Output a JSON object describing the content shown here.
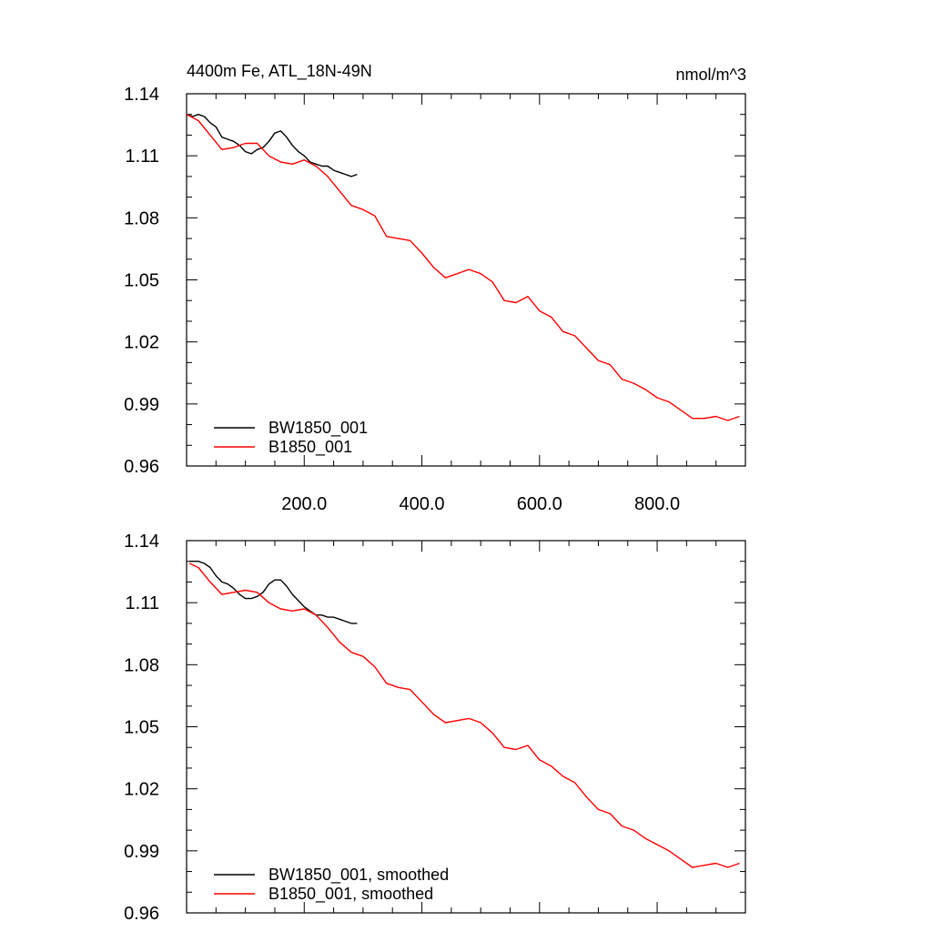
{
  "chart_data": [
    {
      "type": "line",
      "title": "4400m Fe, ATL_18N-49N",
      "units": "nmol/m^3",
      "xlabel": "",
      "ylabel": "",
      "xlim": [
        0,
        950
      ],
      "ylim": [
        0.96,
        1.14
      ],
      "xticks": [
        200,
        400,
        600,
        800
      ],
      "xtick_labels": [
        "200.0",
        "400.0",
        "600.0",
        "800.0"
      ],
      "yticks": [
        0.96,
        0.99,
        1.02,
        1.05,
        1.08,
        1.11,
        1.14
      ],
      "ytick_labels": [
        "0.96",
        "0.99",
        "1.02",
        "1.05",
        "1.08",
        "1.11",
        "1.14"
      ],
      "legend_position": "bottom-left",
      "series": [
        {
          "name": "BW1850_001",
          "color": "#000000",
          "x": [
            0,
            10,
            20,
            30,
            40,
            50,
            60,
            70,
            80,
            90,
            100,
            110,
            120,
            130,
            140,
            150,
            160,
            170,
            180,
            190,
            200,
            210,
            220,
            230,
            240,
            250,
            260,
            270,
            280,
            290
          ],
          "y": [
            1.13,
            1.129,
            1.13,
            1.129,
            1.126,
            1.124,
            1.119,
            1.118,
            1.117,
            1.115,
            1.112,
            1.111,
            1.113,
            1.114,
            1.117,
            1.121,
            1.122,
            1.119,
            1.115,
            1.112,
            1.11,
            1.107,
            1.106,
            1.105,
            1.105,
            1.103,
            1.102,
            1.101,
            1.1,
            1.101
          ]
        },
        {
          "name": "B1850_001",
          "color": "#ff0000",
          "x": [
            0,
            20,
            40,
            60,
            80,
            100,
            120,
            140,
            160,
            180,
            200,
            220,
            240,
            260,
            280,
            300,
            320,
            340,
            360,
            380,
            400,
            420,
            440,
            460,
            480,
            500,
            520,
            540,
            560,
            580,
            600,
            620,
            640,
            660,
            680,
            700,
            720,
            740,
            760,
            780,
            800,
            820,
            840,
            860,
            880,
            900,
            920,
            940
          ],
          "y": [
            1.13,
            1.127,
            1.12,
            1.113,
            1.114,
            1.116,
            1.116,
            1.11,
            1.107,
            1.106,
            1.108,
            1.105,
            1.1,
            1.093,
            1.086,
            1.084,
            1.081,
            1.071,
            1.07,
            1.069,
            1.063,
            1.056,
            1.051,
            1.053,
            1.055,
            1.053,
            1.049,
            1.04,
            1.039,
            1.042,
            1.035,
            1.032,
            1.025,
            1.023,
            1.017,
            1.011,
            1.009,
            1.002,
            1.0,
            0.997,
            0.993,
            0.991,
            0.987,
            0.983,
            0.983,
            0.984,
            0.982,
            0.984
          ]
        }
      ]
    },
    {
      "type": "line",
      "title": "",
      "units": "",
      "xlabel": "",
      "ylabel": "",
      "xlim": [
        0,
        950
      ],
      "ylim": [
        0.96,
        1.14
      ],
      "xticks": [
        200,
        400,
        600,
        800
      ],
      "xtick_labels": [],
      "yticks": [
        0.96,
        0.99,
        1.02,
        1.05,
        1.08,
        1.11,
        1.14
      ],
      "ytick_labels": [
        "0.96",
        "0.99",
        "1.02",
        "1.05",
        "1.08",
        "1.11",
        "1.14"
      ],
      "legend_position": "bottom-left",
      "series": [
        {
          "name": "BW1850_001, smoothed",
          "color": "#000000",
          "x": [
            5,
            10,
            20,
            30,
            40,
            50,
            60,
            70,
            80,
            90,
            100,
            110,
            120,
            130,
            140,
            150,
            160,
            170,
            180,
            190,
            200,
            210,
            220,
            230,
            240,
            250,
            260,
            270,
            280,
            290
          ],
          "y": [
            1.13,
            1.13,
            1.13,
            1.129,
            1.127,
            1.123,
            1.12,
            1.119,
            1.117,
            1.114,
            1.112,
            1.112,
            1.113,
            1.115,
            1.119,
            1.121,
            1.121,
            1.118,
            1.114,
            1.111,
            1.108,
            1.106,
            1.104,
            1.104,
            1.103,
            1.103,
            1.102,
            1.101,
            1.1,
            1.1
          ]
        },
        {
          "name": "B1850_001, smoothed",
          "color": "#ff0000",
          "x": [
            5,
            20,
            40,
            60,
            80,
            100,
            120,
            140,
            160,
            180,
            200,
            220,
            240,
            260,
            280,
            300,
            320,
            340,
            360,
            380,
            400,
            420,
            440,
            460,
            480,
            500,
            520,
            540,
            560,
            580,
            600,
            620,
            640,
            660,
            680,
            700,
            720,
            740,
            760,
            780,
            800,
            820,
            840,
            860,
            880,
            900,
            920,
            940
          ],
          "y": [
            1.129,
            1.127,
            1.12,
            1.114,
            1.115,
            1.116,
            1.115,
            1.11,
            1.107,
            1.106,
            1.107,
            1.104,
            1.098,
            1.091,
            1.086,
            1.084,
            1.079,
            1.071,
            1.069,
            1.068,
            1.062,
            1.056,
            1.052,
            1.053,
            1.054,
            1.052,
            1.047,
            1.04,
            1.039,
            1.041,
            1.034,
            1.031,
            1.026,
            1.023,
            1.016,
            1.01,
            1.008,
            1.002,
            1.0,
            0.996,
            0.993,
            0.99,
            0.986,
            0.982,
            0.983,
            0.984,
            0.982,
            0.984
          ]
        }
      ]
    }
  ]
}
